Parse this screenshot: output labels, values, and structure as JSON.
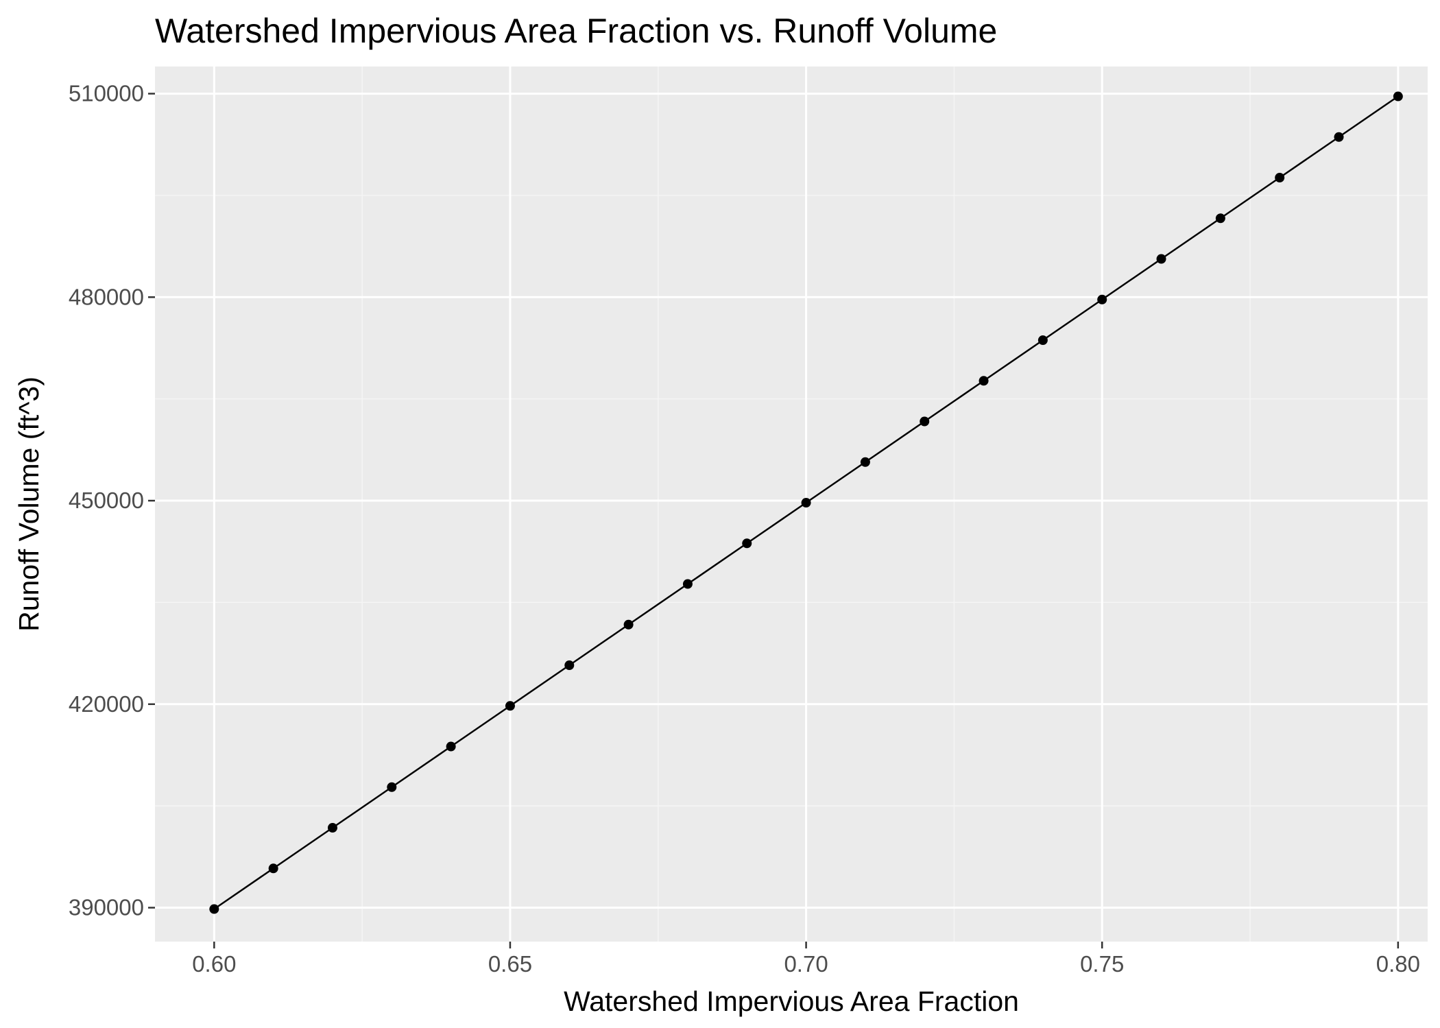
{
  "chart_data": {
    "type": "line",
    "title": "Watershed Impervious Area Fraction vs. Runoff Volume",
    "xlabel": "Watershed Impervious Area Fraction",
    "ylabel": "Runoff Volume (ft^3)",
    "xlim": [
      0.59,
      0.805
    ],
    "ylim": [
      385000,
      514000
    ],
    "x_ticks": [
      0.6,
      0.65,
      0.7,
      0.75,
      0.8
    ],
    "x_tick_labels": [
      "0.60",
      "0.65",
      "0.70",
      "0.75",
      "0.80"
    ],
    "y_ticks": [
      390000,
      420000,
      450000,
      480000,
      510000
    ],
    "y_tick_labels": [
      "390000",
      "420000",
      "450000",
      "480000",
      "510000"
    ],
    "grid": true,
    "markers": true,
    "series": [
      {
        "x": [
          0.6,
          0.61,
          0.62,
          0.63,
          0.64,
          0.65,
          0.66,
          0.67,
          0.68,
          0.69,
          0.7,
          0.71,
          0.72,
          0.73,
          0.74,
          0.75,
          0.76,
          0.77,
          0.78,
          0.79,
          0.8
        ],
        "values": [
          389800,
          395790,
          401780,
          407770,
          413760,
          419750,
          425740,
          431730,
          437720,
          443710,
          449700,
          455690,
          461680,
          467670,
          473660,
          479650,
          485640,
          491630,
          497620,
          503610,
          509600
        ]
      }
    ]
  },
  "colors": {
    "panel_background": "#ebebeb",
    "grid_major": "#ffffff",
    "grid_minor": "#f5f5f5",
    "line": "#000000",
    "points": "#000000",
    "tick_text": "#4d4d4d"
  }
}
